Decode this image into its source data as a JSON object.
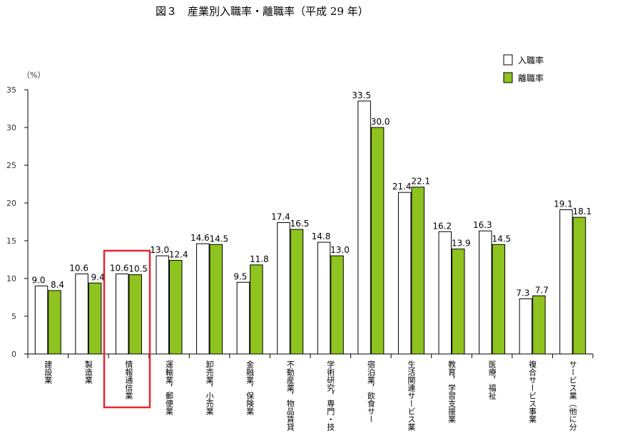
{
  "chart_data": {
    "type": "bar",
    "title": "図３　産業別入職率・離職率（平成 29 年）",
    "ylabel": "（%）",
    "ylim": [
      0,
      35
    ],
    "yticks": [
      0,
      5,
      10,
      15,
      20,
      25,
      30,
      35
    ],
    "legend_position": "top-right",
    "categories": [
      "建設業",
      "製造業",
      "情報通信業",
      "運輸業，郵便業",
      "卸売業，小売業",
      "金融業，保険業",
      "不動産業，物品賃貸",
      "学術研究，専門・技",
      "宿泊業，飲食サー",
      "生活関連サービス業",
      "教育，学習支援業",
      "医療，福祉",
      "複合サービス事業",
      "サービス業（他に分"
    ],
    "series": [
      {
        "name": "入職率",
        "color": "#ffffff",
        "values": [
          9.0,
          10.6,
          10.6,
          13.0,
          14.6,
          9.5,
          17.4,
          14.8,
          33.5,
          21.4,
          16.2,
          16.3,
          7.3,
          19.1
        ]
      },
      {
        "name": "離職率",
        "color": "#8fc31f",
        "values": [
          8.4,
          9.4,
          10.5,
          12.4,
          14.5,
          11.8,
          16.5,
          13.0,
          30.0,
          22.1,
          13.9,
          14.5,
          7.7,
          18.1
        ]
      }
    ],
    "highlight_index": 2,
    "highlight_color": "#e3262f"
  }
}
